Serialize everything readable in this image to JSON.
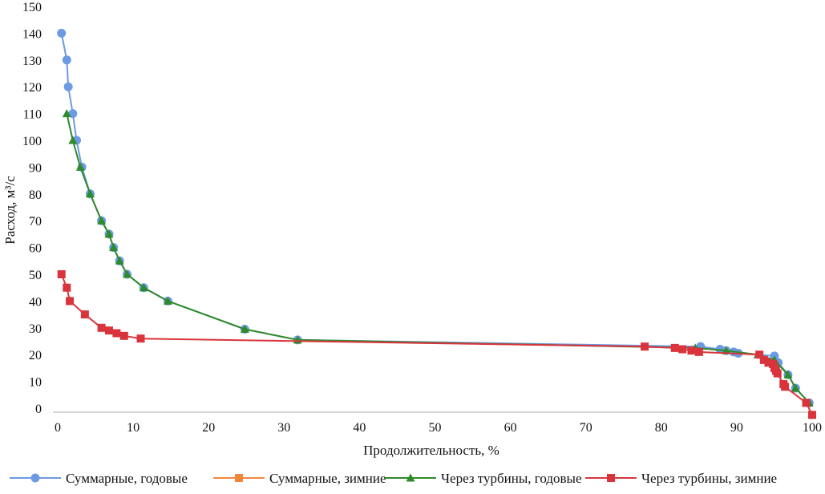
{
  "chart_data": {
    "type": "line",
    "title": "",
    "xlabel": "Продолжительность, %",
    "ylabel": "Расход, м³/с",
    "xlim": [
      0,
      100
    ],
    "ylim": [
      0,
      150
    ],
    "xticks": [
      "0",
      "10",
      "20",
      "30",
      "40",
      "50",
      "60",
      "70",
      "80",
      "90",
      "100"
    ],
    "yticks": [
      "0",
      "10",
      "20",
      "30",
      "40",
      "50",
      "60",
      "70",
      "80",
      "90",
      "100",
      "110",
      "120",
      "130",
      "140",
      "150"
    ],
    "grid": false,
    "legend_position": "bottom",
    "series": [
      {
        "name": "Суммарные, годовые",
        "color": "#6c9ae3",
        "marker": "circle",
        "x": [
          0.5,
          1.2,
          1.4,
          2.0,
          2.5,
          3.2,
          4.3,
          5.8,
          6.8,
          7.4,
          8.2,
          9.2,
          11.4,
          14.6,
          24.8,
          31.8,
          85.2,
          87.8,
          88.6,
          89.6,
          90.2,
          95.0,
          95.5,
          96.8,
          97.8,
          99.6
        ],
        "y": [
          140,
          130,
          120,
          110,
          100,
          90,
          80,
          70,
          65,
          60,
          55,
          50,
          45,
          40,
          29.5,
          25.5,
          23,
          22,
          21.5,
          21,
          20.5,
          19.5,
          17,
          12.5,
          7.5,
          2
        ]
      },
      {
        "name": "Суммарные, зимние",
        "color": "#f0883c",
        "marker": "square",
        "x": [],
        "y": []
      },
      {
        "name": "Через турбины, годовые",
        "color": "#2f8a2a",
        "marker": "triangle",
        "x": [
          1.2,
          2.0,
          3.0,
          4.3,
          5.8,
          6.8,
          7.4,
          8.2,
          9.2,
          11.4,
          14.6,
          24.8,
          31.8,
          84.5,
          88.6,
          92.8,
          95.0,
          96.8,
          97.8,
          99.6
        ],
        "y": [
          110,
          100,
          90,
          80,
          70,
          65,
          60,
          55,
          50,
          45,
          40,
          29.5,
          25.5,
          22.5,
          21.5,
          20,
          18,
          12.5,
          7.5,
          2
        ]
      },
      {
        "name": "Через турбины, зимние",
        "color": "#d9343b",
        "marker": "square",
        "x": [
          0.5,
          1.2,
          1.6,
          3.6,
          5.8,
          6.8,
          7.8,
          8.8,
          11.0,
          77.8,
          81.8,
          82.8,
          84.0,
          85.0,
          93.0,
          93.6,
          94.2,
          94.8,
          95.0,
          95.2,
          95.4,
          96.2,
          96.4,
          99.2,
          100.0
        ],
        "y": [
          50,
          45,
          40,
          35,
          30,
          29,
          28,
          27,
          26,
          23,
          22.5,
          22,
          21.5,
          21,
          20,
          18,
          17,
          16.5,
          15,
          14,
          13,
          9,
          8,
          2,
          -2.5
        ]
      }
    ]
  }
}
